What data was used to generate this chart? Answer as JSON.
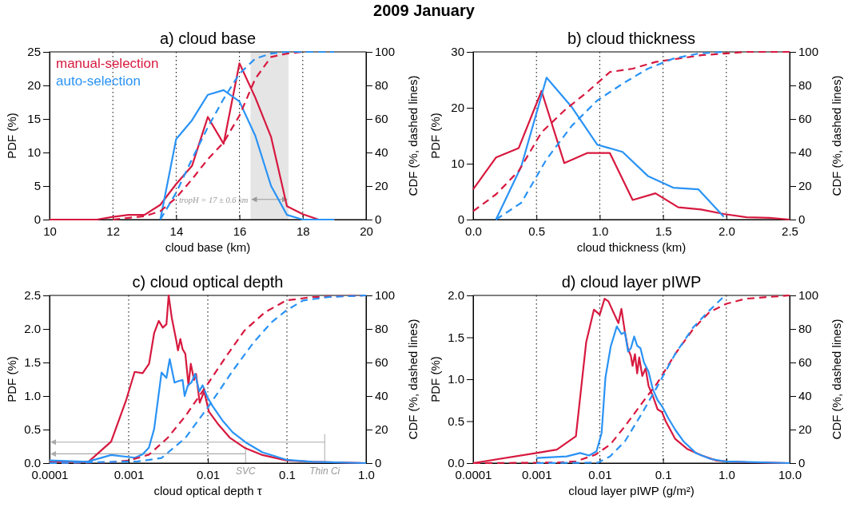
{
  "chart_data": [
    {
      "type": "line",
      "title": "a) cloud base",
      "xlabel": "cloud base (km)",
      "ylabel": "PDF (%)",
      "y2label": "CDF (%, dashed lines)",
      "annotations": [
        "2009 January"
      ],
      "xlim": [
        10,
        20
      ],
      "xticks": [
        10,
        12,
        14,
        16,
        18,
        20
      ],
      "ylim": [
        0,
        25
      ],
      "yticks": [
        0,
        5,
        10,
        15,
        20,
        25
      ],
      "y2lim": [
        0,
        100
      ],
      "y2ticks": [
        0,
        20,
        40,
        60,
        80,
        100
      ],
      "grid": "x",
      "legend": "top left",
      "bands": [
        {
          "axis": "x",
          "from": 16.35,
          "to": 17.55,
          "label": "tropH = 17 ± 0.6 km",
          "color": "#e5e5e5"
        }
      ],
      "series": [
        {
          "name": "manual-selection",
          "color": "#d7193f",
          "line_style": "solid",
          "x": [
            10,
            10.5,
            11,
            11.5,
            12,
            12.5,
            13,
            13.5,
            14,
            14.5,
            15,
            15.5,
            16,
            16.5,
            17,
            17.5,
            18,
            18.5,
            19
          ],
          "values": [
            0,
            0,
            0,
            0,
            0.4,
            0.7,
            0.7,
            2.2,
            5.3,
            8,
            15.3,
            11.3,
            23.3,
            18.2,
            12.3,
            2,
            0.8,
            0,
            0
          ]
        },
        {
          "name": "auto-selection",
          "color": "#2a93f5",
          "line_style": "solid",
          "x": [
            13.5,
            14,
            14.5,
            15,
            15.5,
            16,
            16.5,
            17,
            17.5,
            18,
            18.5,
            19
          ],
          "values": [
            0,
            12,
            14.8,
            18.6,
            19.3,
            17.6,
            12.5,
            5,
            0.7,
            0,
            0,
            0
          ]
        },
        {
          "color": "#d7193f",
          "line_style": "dashed",
          "axis": "y2",
          "x": [
            12,
            12.5,
            13,
            13.5,
            14,
            14.5,
            15,
            15.5,
            16,
            16.5,
            17,
            17.5,
            18,
            18.5,
            19
          ],
          "values": [
            0,
            1,
            2,
            5,
            13,
            24,
            36,
            46,
            62,
            84,
            97,
            99,
            100,
            100,
            100
          ]
        },
        {
          "color": "#2a93f5",
          "line_style": "dashed",
          "axis": "y2",
          "x": [
            13.5,
            14,
            14.5,
            15,
            15.5,
            16,
            16.5,
            17,
            17.5,
            18,
            18.5,
            19
          ],
          "values": [
            0,
            16,
            36,
            55,
            72,
            87,
            96,
            99,
            100,
            100,
            100,
            100
          ]
        }
      ]
    },
    {
      "type": "line",
      "title": "b) cloud thickness",
      "xlabel": "cloud thickness (km)",
      "ylabel": "PDF (%)",
      "y2label": "CDF (%, dashed lines)",
      "xlim": [
        0,
        2.5
      ],
      "xticks": [
        {
          "value": 0,
          "label": "0.0"
        },
        0.5,
        {
          "value": 1,
          "label": "1.0"
        },
        1.5,
        {
          "value": 2,
          "label": "2.0"
        },
        2.5
      ],
      "ylim": [
        0,
        30
      ],
      "yticks": [
        0,
        10,
        20,
        30
      ],
      "y2lim": [
        0,
        100
      ],
      "y2ticks": [
        0,
        20,
        40,
        60,
        80,
        100
      ],
      "grid": "x",
      "series": [
        {
          "color": "#d7193f",
          "line_style": "solid",
          "x": [
            0,
            0.18,
            0.36,
            0.54,
            0.72,
            0.9,
            1.08,
            1.26,
            1.44,
            1.62,
            1.8,
            1.98,
            2.16,
            2.34,
            2.5
          ],
          "values": [
            5.4,
            11.1,
            12.8,
            23,
            10.1,
            11.9,
            11.9,
            3.5,
            4.7,
            2.2,
            1.8,
            1,
            0.4,
            0.3,
            0
          ]
        },
        {
          "color": "#2a93f5",
          "line_style": "solid",
          "x": [
            0.18,
            0.38,
            0.58,
            0.78,
            0.98,
            1.18,
            1.38,
            1.58,
            1.78,
            1.98
          ],
          "values": [
            0,
            9.5,
            25.4,
            20.1,
            13.4,
            12.1,
            7.8,
            5.7,
            5.4,
            0.5
          ]
        },
        {
          "color": "#d7193f",
          "line_style": "dashed",
          "axis": "y2",
          "x": [
            0,
            0.18,
            0.36,
            0.54,
            0.72,
            0.9,
            1.08,
            1.26,
            1.44,
            1.62,
            1.8,
            1.98,
            2.16,
            2.34,
            2.5
          ],
          "values": [
            5,
            15,
            29,
            52,
            65,
            76,
            88,
            90,
            94,
            96,
            98,
            99,
            100,
            100,
            100
          ]
        },
        {
          "color": "#2a93f5",
          "line_style": "dashed",
          "axis": "y2",
          "x": [
            0.18,
            0.38,
            0.58,
            0.78,
            0.98,
            1.18,
            1.38,
            1.58,
            1.78,
            1.98
          ],
          "values": [
            0,
            10,
            36,
            56,
            71,
            81,
            90,
            96,
            99,
            100
          ]
        }
      ]
    },
    {
      "type": "line",
      "title": "c) cloud optical depth",
      "xlabel": "cloud optical depth τ",
      "ylabel": "PDF (%)",
      "y2label": "CDF (%, dashed lines)",
      "ref_lines": [
        {
          "axis": "x",
          "value": 0.03,
          "label": "SVC",
          "color": "#aaaaaa"
        },
        {
          "axis": "x",
          "value": 0.3,
          "label": "Thin Ci",
          "color": "#aaaaaa"
        }
      ],
      "log": "x",
      "xlim": [
        0.0001,
        1
      ],
      "xticks": [
        0.0001,
        0.001,
        0.01,
        0.1,
        {
          "value": 1,
          "label": "1.0"
        }
      ],
      "ylim": [
        0,
        2.5
      ],
      "yticks": [
        {
          "value": 0,
          "label": "0.0"
        },
        0.5,
        {
          "value": 1,
          "label": "1.0"
        },
        1.5,
        {
          "value": 2,
          "label": "2.0"
        },
        2.5
      ],
      "y2lim": [
        0,
        100
      ],
      "y2ticks": [
        0,
        20,
        40,
        60,
        80,
        100
      ],
      "grid": "x",
      "series": [
        {
          "color": "#d7193f",
          "line_style": "solid",
          "x": [
            0.0001,
            0.00031,
            0.0006,
            0.00093,
            0.00119,
            0.0015,
            0.00181,
            0.0021,
            0.0024,
            0.0027,
            0.003,
            0.0032,
            0.0035,
            0.00399,
            0.0042,
            0.0045,
            0.0048,
            0.0052,
            0.0057,
            0.0061,
            0.0067,
            0.0071,
            0.0079,
            0.009,
            0.0103,
            0.0133,
            0.0189,
            0.029,
            0.049,
            0.098,
            0.21,
            1
          ],
          "values": [
            0.02,
            0.02,
            0.32,
            0.94,
            1.36,
            1.34,
            1.48,
            1.94,
            2.12,
            2.02,
            2.07,
            2.5,
            2.17,
            1.83,
            1.68,
            1.85,
            1.7,
            1.63,
            1.16,
            1.48,
            1.24,
            1.33,
            0.9,
            1.07,
            0.77,
            0.59,
            0.38,
            0.23,
            0.12,
            0.04,
            0.02,
            0
          ]
        },
        {
          "color": "#2a93f5",
          "line_style": "solid",
          "x": [
            0.0001,
            0.0003,
            0.0006,
            0.0012,
            0.0015,
            0.0018,
            0.0021,
            0.0026,
            0.003,
            0.0033,
            0.0038,
            0.0042,
            0.0048,
            0.0051,
            0.0056,
            0.0062,
            0.0069,
            0.0078,
            0.0086,
            0.0099,
            0.0115,
            0.0152,
            0.0206,
            0.03,
            0.049,
            0.098,
            0.21,
            1
          ],
          "values": [
            0.04,
            0.02,
            0.12,
            0.08,
            0.13,
            0.23,
            0.51,
            1.35,
            1.27,
            1.55,
            1.2,
            1.22,
            1.24,
            1,
            1.16,
            1.2,
            1.33,
            1.07,
            1.16,
            0.98,
            0.85,
            0.64,
            0.46,
            0.31,
            0.16,
            0.05,
            0.02,
            0
          ]
        },
        {
          "color": "#d7193f",
          "line_style": "dashed",
          "axis": "y2",
          "x": [
            0.0001,
            0.0006,
            0.001,
            0.0018,
            0.0031,
            0.0052,
            0.0099,
            0.0173,
            0.029,
            0.053,
            0.098,
            0.21,
            1
          ],
          "values": [
            0,
            0.5,
            1.5,
            5,
            15,
            28,
            47,
            64,
            79,
            90,
            97,
            99,
            100
          ]
        },
        {
          "color": "#2a93f5",
          "line_style": "dashed",
          "axis": "y2",
          "x": [
            0.0001,
            0.0013,
            0.0026,
            0.0052,
            0.0103,
            0.0206,
            0.038,
            0.064,
            0.098,
            0.16,
            0.33,
            1
          ],
          "values": [
            0,
            1,
            3,
            15,
            34,
            55,
            72,
            84,
            91,
            97,
            99,
            100
          ]
        }
      ]
    },
    {
      "type": "line",
      "title": "d) cloud layer pIWP",
      "xlabel": "cloud layer pIWP (g/m²)",
      "ylabel": "PDF (%)",
      "y2label": "CDF (%, dashed lines)",
      "log": "x",
      "xlim": [
        0.0001,
        10
      ],
      "xticks": [
        0.0001,
        0.001,
        0.01,
        0.1,
        {
          "value": 1,
          "label": "1.0"
        },
        {
          "value": 10,
          "label": "10.0"
        }
      ],
      "ylim": [
        0,
        2
      ],
      "yticks": [
        {
          "value": 0,
          "label": "0.0"
        },
        0.5,
        {
          "value": 1,
          "label": "1.0"
        },
        1.5,
        {
          "value": 2,
          "label": "2.0"
        }
      ],
      "y2lim": [
        0,
        100
      ],
      "y2ticks": [
        0,
        20,
        40,
        60,
        80,
        100
      ],
      "grid": "x",
      "series": [
        {
          "color": "#d7193f",
          "line_style": "solid",
          "x": [
            0.0001,
            0.001,
            0.0021,
            0.0042,
            0.0061,
            0.0081,
            0.01,
            0.0119,
            0.0137,
            0.0197,
            0.022,
            0.025,
            0.028,
            0.031,
            0.033,
            0.036,
            0.039,
            0.042,
            0.047,
            0.053,
            0.059,
            0.069,
            0.082,
            0.096,
            0.11,
            0.155,
            0.24,
            0.41,
            0.7,
            1,
            2,
            10
          ],
          "values": [
            0,
            0.12,
            0.16,
            0.32,
            1.44,
            1.83,
            1.77,
            1.96,
            1.93,
            1.67,
            1.84,
            1.56,
            1.36,
            1.28,
            1.16,
            1.3,
            1.07,
            1.26,
            1.04,
            1.13,
            0.92,
            0.8,
            0.64,
            0.61,
            0.5,
            0.29,
            0.17,
            0.09,
            0.03,
            0.02,
            0.01,
            0
          ]
        },
        {
          "color": "#2a93f5",
          "line_style": "solid",
          "x": [
            0.001,
            0.003,
            0.0049,
            0.0068,
            0.0089,
            0.0107,
            0.0123,
            0.0149,
            0.0186,
            0.022,
            0.025,
            0.028,
            0.031,
            0.035,
            0.039,
            0.044,
            0.05,
            0.059,
            0.069,
            0.082,
            0.096,
            0.12,
            0.155,
            0.21,
            0.33,
            0.56,
            0.95,
            10
          ],
          "values": [
            0.06,
            0.08,
            0.12,
            0.09,
            0.14,
            0.36,
            1.02,
            1.39,
            1.63,
            1.54,
            1.56,
            1.33,
            1.37,
            1.51,
            1.4,
            1.37,
            1.2,
            1.09,
            0.88,
            0.75,
            0.68,
            0.54,
            0.4,
            0.26,
            0.12,
            0.05,
            0.02,
            0
          ]
        },
        {
          "color": "#d7193f",
          "line_style": "dashed",
          "axis": "y2",
          "x": [
            0.0001,
            0.0021,
            0.0042,
            0.0085,
            0.0146,
            0.025,
            0.047,
            0.082,
            0.155,
            0.3,
            0.54,
            1,
            2,
            10
          ],
          "values": [
            0,
            0.3,
            1,
            5,
            11,
            22,
            36,
            48,
            65,
            80,
            90,
            95,
            98,
            100
          ]
        },
        {
          "color": "#2a93f5",
          "line_style": "dashed",
          "axis": "y2",
          "x": [
            0.001,
            0.0094,
            0.0146,
            0.025,
            0.047,
            0.082,
            0.155,
            0.3,
            0.54,
            0.95
          ],
          "values": [
            0,
            0.3,
            4,
            13,
            30,
            46,
            65,
            81,
            91,
            100
          ]
        }
      ]
    }
  ]
}
